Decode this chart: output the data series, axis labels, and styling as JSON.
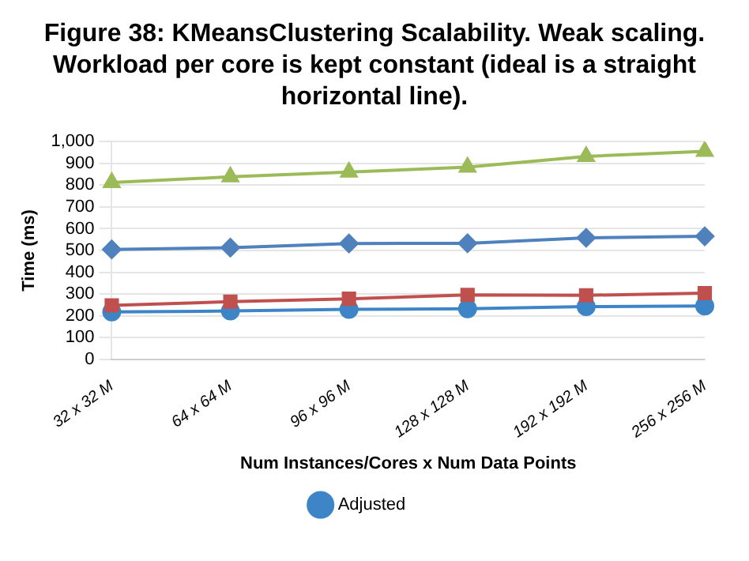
{
  "chart_data": {
    "type": "line",
    "title": "Figure 38: KMeansClustering Scalability. Weak scaling. Workload per core is kept constant (ideal is a straight horizontal line).",
    "xlabel": "Num Instances/Cores x Num Data Points",
    "ylabel": "Time (ms)",
    "categories": [
      "32 x 32 M",
      "64 x 64 M",
      "96 x 96 M",
      "128 x 128 M",
      "192 x 192 M",
      "256 x 256 M"
    ],
    "series": [
      {
        "color": "#9bbb59",
        "marker": "triangle",
        "values": [
          812,
          838,
          860,
          883,
          932,
          955
        ]
      },
      {
        "color": "#4f81bd",
        "marker": "diamond",
        "values": [
          505,
          513,
          532,
          533,
          558,
          565
        ]
      },
      {
        "color": "#c0504d",
        "marker": "square",
        "values": [
          248,
          265,
          278,
          296,
          294,
          304
        ]
      },
      {
        "name": "Adjusted",
        "color": "#3d85c6",
        "marker": "circle",
        "values": [
          218,
          222,
          230,
          232,
          242,
          245
        ]
      }
    ],
    "ylim": [
      0,
      1000
    ],
    "yticks": [
      0,
      100,
      200,
      300,
      400,
      500,
      600,
      700,
      800,
      900,
      {
        "value": 1000,
        "label": "1,000"
      }
    ],
    "grid": "y",
    "legend": "bottom",
    "line_style": "solid"
  }
}
